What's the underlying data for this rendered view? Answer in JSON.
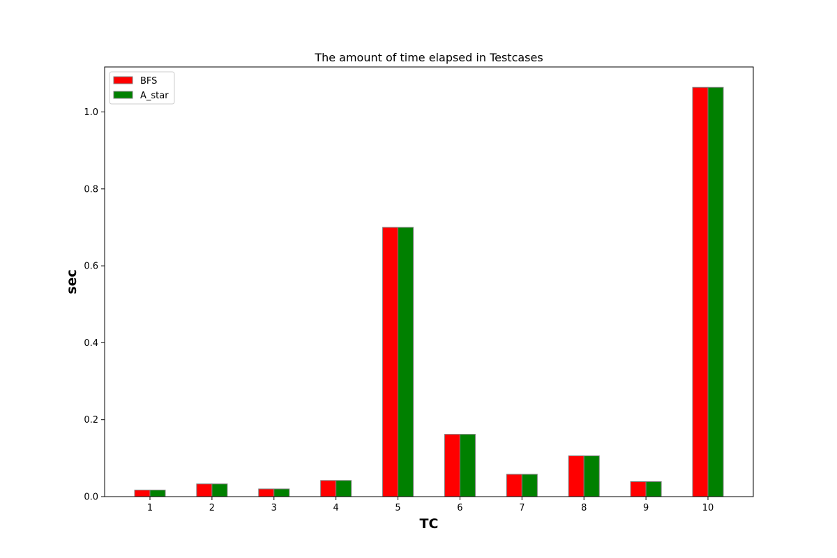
{
  "chart_data": {
    "type": "bar",
    "title": "The amount of time elapsed in  Testcases",
    "xlabel": "TC",
    "ylabel": "sec",
    "categories": [
      "1",
      "2",
      "3",
      "4",
      "5",
      "6",
      "7",
      "8",
      "9",
      "10"
    ],
    "series": [
      {
        "name": "BFS",
        "color": "#ff0000",
        "values": [
          0.017,
          0.033,
          0.02,
          0.042,
          0.7,
          0.162,
          0.058,
          0.106,
          0.039,
          1.064
        ]
      },
      {
        "name": "A_star",
        "color": "#008000",
        "values": [
          0.017,
          0.033,
          0.02,
          0.042,
          0.7,
          0.162,
          0.058,
          0.106,
          0.039,
          1.064
        ]
      }
    ],
    "ylim": [
      0,
      1.117
    ],
    "yticks": [
      "0.0",
      "0.2",
      "0.4",
      "0.6",
      "0.8",
      "1.0"
    ],
    "ytick_values": [
      0,
      0.2,
      0.4,
      0.6,
      0.8,
      1.0
    ],
    "bar_edge_color": "#808080",
    "grid": false,
    "legend_position": "upper-left"
  }
}
